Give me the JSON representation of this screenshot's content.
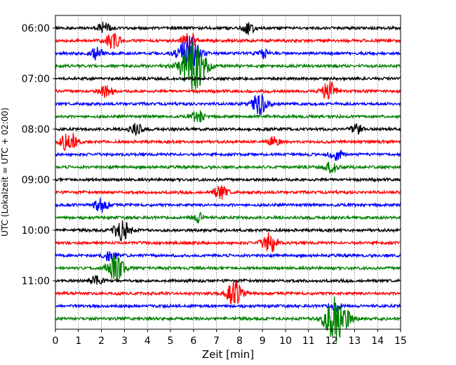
{
  "chart_data": {
    "type": "line",
    "title": "",
    "xlabel": "Zeit  [min]",
    "ylabel": "UTC (Lokalzeit = UTC + 02:00)",
    "xlim": [
      0,
      15
    ],
    "x_ticks": [
      "0",
      "1",
      "2",
      "3",
      "4",
      "5",
      "6",
      "7",
      "8",
      "9",
      "10",
      "11",
      "12",
      "13",
      "14",
      "15"
    ],
    "y_tick_labels": [
      "06:00",
      "07:00",
      "08:00",
      "09:00",
      "10:00",
      "11:00"
    ],
    "grid": "vertical dotted at each minute",
    "trace_interval_minutes": 15,
    "traces_start": "06:00",
    "trace_count": 24,
    "trace_colors": [
      "#000000",
      "#ff0000",
      "#0000ff",
      "#008000"
    ],
    "events": [
      {
        "trace": 0,
        "minute": 2.1,
        "amplitude": 1.6
      },
      {
        "trace": 0,
        "minute": 8.4,
        "amplitude": 1.6
      },
      {
        "trace": 1,
        "minute": 2.5,
        "amplitude": 2.2
      },
      {
        "trace": 1,
        "minute": 5.8,
        "amplitude": 2.6
      },
      {
        "trace": 2,
        "minute": 1.8,
        "amplitude": 1.6
      },
      {
        "trace": 2,
        "minute": 5.8,
        "amplitude": 5.0
      },
      {
        "trace": 2,
        "minute": 9.0,
        "amplitude": 1.4
      },
      {
        "trace": 3,
        "minute": 6.0,
        "amplitude": 7.0
      },
      {
        "trace": 5,
        "minute": 2.2,
        "amplitude": 1.8
      },
      {
        "trace": 5,
        "minute": 11.9,
        "amplitude": 2.6
      },
      {
        "trace": 6,
        "minute": 8.9,
        "amplitude": 3.0
      },
      {
        "trace": 7,
        "minute": 6.2,
        "amplitude": 1.6
      },
      {
        "trace": 8,
        "minute": 3.5,
        "amplitude": 1.6
      },
      {
        "trace": 8,
        "minute": 13.1,
        "amplitude": 1.4
      },
      {
        "trace": 9,
        "minute": 0.6,
        "amplitude": 3.0
      },
      {
        "trace": 9,
        "minute": 9.5,
        "amplitude": 1.4
      },
      {
        "trace": 10,
        "minute": 12.2,
        "amplitude": 1.6
      },
      {
        "trace": 11,
        "minute": 12.0,
        "amplitude": 1.6
      },
      {
        "trace": 13,
        "minute": 7.2,
        "amplitude": 2.0
      },
      {
        "trace": 14,
        "minute": 2.0,
        "amplitude": 2.2
      },
      {
        "trace": 15,
        "minute": 6.2,
        "amplitude": 1.4
      },
      {
        "trace": 16,
        "minute": 2.9,
        "amplitude": 3.0
      },
      {
        "trace": 17,
        "minute": 9.3,
        "amplitude": 2.8
      },
      {
        "trace": 18,
        "minute": 2.4,
        "amplitude": 1.8
      },
      {
        "trace": 19,
        "minute": 2.6,
        "amplitude": 3.6
      },
      {
        "trace": 20,
        "minute": 1.8,
        "amplitude": 1.6
      },
      {
        "trace": 21,
        "minute": 7.8,
        "amplitude": 3.4
      },
      {
        "trace": 22,
        "minute": 12.2,
        "amplitude": 1.4
      },
      {
        "trace": 23,
        "minute": 12.2,
        "amplitude": 6.5
      }
    ]
  }
}
